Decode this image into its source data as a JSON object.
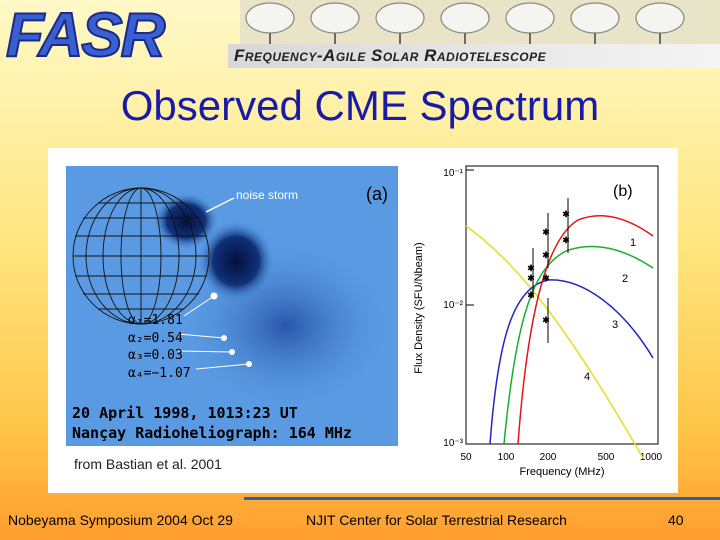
{
  "header": {
    "logo_text": "FASR",
    "subtitle": "Frequency-Agile Solar Radiotelescope"
  },
  "slide": {
    "title": "Observed CME Spectrum"
  },
  "figure": {
    "panel_a": {
      "label": "(a)",
      "annotation": "noise storm",
      "alphas": [
        "α₁=1.81",
        "α₂=0.54",
        "α₃=0.03",
        "α₄=−1.07"
      ],
      "date_line": "20 April 1998, 1013:23 UT",
      "instrument_line": "Nançay Radioheliograph: 164 MHz"
    },
    "panel_b": {
      "label": "(b)",
      "ylabel": "Flux Density (SFU/Nbeam)",
      "xlabel": "Frequency (MHz)",
      "y_ticks": [
        "10⁻¹",
        "10⁻²",
        "10⁻³"
      ],
      "x_ticks": [
        "50",
        "100",
        "200",
        "500",
        "1000"
      ],
      "curve_labels": [
        "1",
        "2",
        "3",
        "4"
      ]
    },
    "caption": "from Bastian et al. 2001"
  },
  "footer": {
    "left": "Nobeyama Symposium  2004 Oct 29",
    "center": "NJIT Center for Solar Terrestrial Research",
    "page": "40"
  }
}
